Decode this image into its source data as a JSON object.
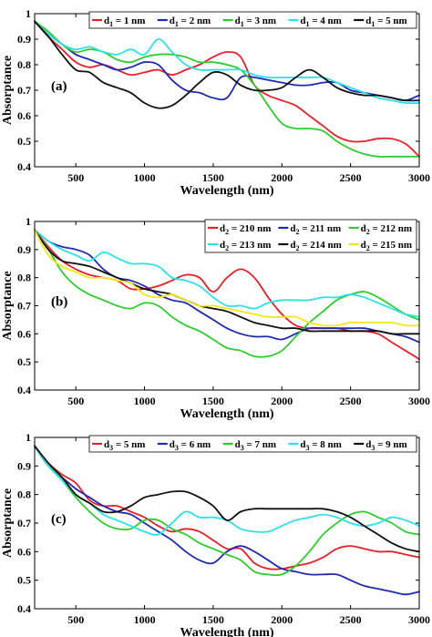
{
  "chart_data": [
    {
      "type": "line",
      "panel_label": "(a)",
      "xlabel": "Wavelength (nm)",
      "ylabel": "Absorptance",
      "xlim": [
        200,
        3000
      ],
      "ylim": [
        0.4,
        1.0
      ],
      "xticks": [
        500,
        1000,
        1500,
        2000,
        2500,
        3000
      ],
      "xtick_labels": [
        "500",
        "1000",
        "1500",
        "2000",
        "2500",
        "3000"
      ],
      "yticks": [
        0.4,
        0.5,
        0.6,
        0.7,
        0.8,
        0.9,
        1.0
      ],
      "ytick_labels": [
        "0.4",
        "0.5",
        "0.6",
        "0.7",
        "0.8",
        "0.9",
        "1"
      ],
      "grid": false,
      "legend_position": "top-right",
      "legend_cols": 5,
      "x": [
        200,
        300,
        400,
        500,
        600,
        700,
        800,
        900,
        1000,
        1100,
        1200,
        1300,
        1400,
        1500,
        1600,
        1700,
        1800,
        1900,
        2000,
        2100,
        2200,
        2300,
        2400,
        2500,
        2600,
        2700,
        2800,
        2900,
        3000
      ],
      "series": [
        {
          "name": "d1 = 1 nm",
          "sym": "d",
          "sub": "1",
          "rest": " = 1 nm",
          "color": "#e8202a",
          "values": [
            0.97,
            0.91,
            0.86,
            0.81,
            0.79,
            0.8,
            0.78,
            0.76,
            0.77,
            0.78,
            0.76,
            0.78,
            0.8,
            0.83,
            0.85,
            0.83,
            0.72,
            0.68,
            0.66,
            0.64,
            0.6,
            0.56,
            0.52,
            0.5,
            0.5,
            0.51,
            0.51,
            0.49,
            0.44
          ]
        },
        {
          "name": "d1 = 2 nm",
          "sym": "d",
          "sub": "1",
          "rest": " = 2 nm",
          "color": "#1f2ab0",
          "values": [
            0.97,
            0.92,
            0.88,
            0.84,
            0.82,
            0.8,
            0.78,
            0.79,
            0.81,
            0.8,
            0.74,
            0.7,
            0.69,
            0.67,
            0.67,
            0.75,
            0.75,
            0.74,
            0.73,
            0.72,
            0.72,
            0.73,
            0.73,
            0.7,
            0.69,
            0.68,
            0.67,
            0.66,
            0.68
          ]
        },
        {
          "name": "d1 = 3 nm",
          "sym": "d",
          "sub": "1",
          "rest": " = 3 nm",
          "color": "#2ecc2e",
          "values": [
            0.97,
            0.93,
            0.88,
            0.85,
            0.86,
            0.85,
            0.82,
            0.81,
            0.83,
            0.84,
            0.84,
            0.83,
            0.81,
            0.81,
            0.8,
            0.78,
            0.72,
            0.64,
            0.57,
            0.55,
            0.55,
            0.54,
            0.5,
            0.47,
            0.45,
            0.44,
            0.44,
            0.44,
            0.44
          ]
        },
        {
          "name": "d1 = 4 nm",
          "sym": "d",
          "sub": "1",
          "rest": " = 4 nm",
          "color": "#2ee0e8",
          "values": [
            0.97,
            0.92,
            0.88,
            0.86,
            0.87,
            0.85,
            0.84,
            0.86,
            0.84,
            0.9,
            0.85,
            0.8,
            0.78,
            0.78,
            0.78,
            0.78,
            0.76,
            0.75,
            0.75,
            0.75,
            0.75,
            0.75,
            0.73,
            0.71,
            0.69,
            0.67,
            0.66,
            0.65,
            0.65
          ]
        },
        {
          "name": "d1 = 5 nm",
          "sym": "d",
          "sub": "1",
          "rest": " = 5 nm",
          "color": "#111111",
          "values": [
            0.97,
            0.91,
            0.84,
            0.78,
            0.77,
            0.73,
            0.71,
            0.69,
            0.65,
            0.63,
            0.64,
            0.68,
            0.73,
            0.77,
            0.76,
            0.72,
            0.7,
            0.7,
            0.71,
            0.75,
            0.78,
            0.75,
            0.71,
            0.69,
            0.68,
            0.68,
            0.67,
            0.66,
            0.66
          ]
        }
      ]
    },
    {
      "type": "line",
      "panel_label": "(b)",
      "xlabel": "Wavelength (nm)",
      "ylabel": "Absorptance",
      "xlim": [
        200,
        3000
      ],
      "ylim": [
        0.4,
        1.0
      ],
      "xticks": [
        500,
        1000,
        1500,
        2000,
        2500,
        3000
      ],
      "xtick_labels": [
        "500",
        "1000",
        "1500",
        "2000",
        "2500",
        "3000"
      ],
      "yticks": [
        0.4,
        0.5,
        0.6,
        0.7,
        0.8,
        0.9,
        1.0
      ],
      "ytick_labels": [
        "0.4",
        "0.5",
        "0.6",
        "0.7",
        "0.8",
        "0.9",
        "1"
      ],
      "grid": false,
      "legend_position": "top-right",
      "legend_cols": 3,
      "x": [
        200,
        300,
        400,
        500,
        600,
        700,
        800,
        900,
        1000,
        1100,
        1200,
        1300,
        1400,
        1500,
        1600,
        1700,
        1800,
        1900,
        2000,
        2100,
        2200,
        2300,
        2400,
        2500,
        2600,
        2700,
        2800,
        2900,
        3000
      ],
      "series": [
        {
          "name": "d2 = 210 nm",
          "sym": "d",
          "sub": "2",
          "rest": " = 210 nm",
          "color": "#e8202a",
          "values": [
            0.97,
            0.91,
            0.86,
            0.83,
            0.81,
            0.8,
            0.79,
            0.76,
            0.76,
            0.77,
            0.79,
            0.81,
            0.8,
            0.75,
            0.8,
            0.83,
            0.8,
            0.73,
            0.67,
            0.63,
            0.62,
            0.62,
            0.62,
            0.61,
            0.61,
            0.6,
            0.57,
            0.54,
            0.51
          ]
        },
        {
          "name": "d2 = 211 nm",
          "sym": "d",
          "sub": "2",
          "rest": " = 211 nm",
          "color": "#1f2ab0",
          "values": [
            0.97,
            0.93,
            0.91,
            0.9,
            0.88,
            0.83,
            0.8,
            0.79,
            0.77,
            0.74,
            0.72,
            0.71,
            0.68,
            0.65,
            0.62,
            0.6,
            0.59,
            0.59,
            0.58,
            0.6,
            0.62,
            0.62,
            0.62,
            0.62,
            0.62,
            0.61,
            0.6,
            0.59,
            0.57
          ]
        },
        {
          "name": "d2 = 212 nm",
          "sym": "d",
          "sub": "2",
          "rest": " = 212 nm",
          "color": "#2ecc2e",
          "values": [
            0.97,
            0.9,
            0.82,
            0.77,
            0.74,
            0.72,
            0.7,
            0.69,
            0.71,
            0.7,
            0.66,
            0.63,
            0.61,
            0.58,
            0.55,
            0.54,
            0.52,
            0.52,
            0.54,
            0.59,
            0.64,
            0.68,
            0.72,
            0.74,
            0.75,
            0.73,
            0.7,
            0.67,
            0.65
          ]
        },
        {
          "name": "d2 = 213 nm",
          "sym": "d",
          "sub": "2",
          "rest": " = 213 nm",
          "color": "#2ee0e8",
          "values": [
            0.97,
            0.93,
            0.9,
            0.88,
            0.86,
            0.89,
            0.87,
            0.85,
            0.85,
            0.84,
            0.8,
            0.79,
            0.77,
            0.73,
            0.7,
            0.7,
            0.69,
            0.71,
            0.72,
            0.72,
            0.72,
            0.73,
            0.73,
            0.74,
            0.73,
            0.71,
            0.69,
            0.67,
            0.66
          ]
        },
        {
          "name": "d2 = 214 nm",
          "sym": "d",
          "sub": "2",
          "rest": " = 214 nm",
          "color": "#111111",
          "values": [
            0.97,
            0.9,
            0.86,
            0.85,
            0.84,
            0.82,
            0.8,
            0.78,
            0.76,
            0.75,
            0.74,
            0.72,
            0.7,
            0.69,
            0.68,
            0.66,
            0.64,
            0.63,
            0.62,
            0.62,
            0.61,
            0.61,
            0.61,
            0.61,
            0.61,
            0.61,
            0.6,
            0.6,
            0.6
          ]
        },
        {
          "name": "d2 = 215 nm",
          "sym": "d",
          "sub": "2",
          "rest": " = 215 nm",
          "color": "#f5e71a",
          "values": [
            0.97,
            0.88,
            0.84,
            0.82,
            0.8,
            0.8,
            0.79,
            0.78,
            0.74,
            0.73,
            0.74,
            0.72,
            0.7,
            0.7,
            0.69,
            0.68,
            0.67,
            0.66,
            0.66,
            0.66,
            0.64,
            0.63,
            0.63,
            0.64,
            0.64,
            0.64,
            0.64,
            0.63,
            0.63
          ]
        }
      ]
    },
    {
      "type": "line",
      "panel_label": "(c)",
      "xlabel": "Wavelength (nm)",
      "ylabel": "Absorptance",
      "xlim": [
        200,
        3000
      ],
      "ylim": [
        0.4,
        1.0
      ],
      "xticks": [
        500,
        1000,
        1500,
        2000,
        2500,
        3000
      ],
      "xtick_labels": [
        "500",
        "1000",
        "1500",
        "2000",
        "2500",
        "3000"
      ],
      "yticks": [
        0.4,
        0.5,
        0.6,
        0.7,
        0.8,
        0.9,
        1.0
      ],
      "ytick_labels": [
        "0.4",
        "0.5",
        "0.6",
        "0.7",
        "0.8",
        "0.9",
        "1"
      ],
      "grid": false,
      "legend_position": "top-right",
      "legend_cols": 5,
      "x": [
        200,
        300,
        400,
        500,
        600,
        700,
        800,
        900,
        1000,
        1100,
        1200,
        1300,
        1400,
        1500,
        1600,
        1700,
        1800,
        1900,
        2000,
        2100,
        2200,
        2300,
        2400,
        2500,
        2600,
        2700,
        2800,
        2900,
        3000
      ],
      "series": [
        {
          "name": "d3 = 5 nm",
          "sym": "d",
          "sub": "3",
          "rest": " = 5 nm",
          "color": "#e8202a",
          "values": [
            0.97,
            0.91,
            0.87,
            0.84,
            0.78,
            0.76,
            0.76,
            0.74,
            0.72,
            0.69,
            0.67,
            0.68,
            0.67,
            0.64,
            0.61,
            0.61,
            0.56,
            0.54,
            0.54,
            0.55,
            0.56,
            0.58,
            0.61,
            0.62,
            0.61,
            0.6,
            0.6,
            0.59,
            0.58
          ]
        },
        {
          "name": "d3 = 6 nm",
          "sym": "d",
          "sub": "3",
          "rest": " = 6 nm",
          "color": "#1f2ab0",
          "values": [
            0.97,
            0.9,
            0.86,
            0.82,
            0.79,
            0.76,
            0.74,
            0.73,
            0.7,
            0.67,
            0.64,
            0.6,
            0.57,
            0.56,
            0.6,
            0.62,
            0.6,
            0.57,
            0.54,
            0.53,
            0.52,
            0.52,
            0.52,
            0.5,
            0.48,
            0.47,
            0.46,
            0.45,
            0.46
          ]
        },
        {
          "name": "d3 = 7 nm",
          "sym": "d",
          "sub": "3",
          "rest": " = 7 nm",
          "color": "#2ecc2e",
          "values": [
            0.97,
            0.91,
            0.85,
            0.79,
            0.74,
            0.7,
            0.68,
            0.68,
            0.71,
            0.71,
            0.68,
            0.66,
            0.63,
            0.61,
            0.59,
            0.57,
            0.53,
            0.52,
            0.52,
            0.55,
            0.6,
            0.66,
            0.7,
            0.73,
            0.74,
            0.72,
            0.7,
            0.67,
            0.66
          ]
        },
        {
          "name": "d3 = 8 nm",
          "sym": "d",
          "sub": "3",
          "rest": " = 8 nm",
          "color": "#2ee0e8",
          "values": [
            0.97,
            0.9,
            0.85,
            0.8,
            0.77,
            0.73,
            0.71,
            0.69,
            0.67,
            0.66,
            0.7,
            0.74,
            0.72,
            0.72,
            0.71,
            0.68,
            0.67,
            0.67,
            0.69,
            0.71,
            0.72,
            0.73,
            0.72,
            0.7,
            0.69,
            0.7,
            0.72,
            0.71,
            0.69
          ]
        },
        {
          "name": "d3 = 9 nm",
          "sym": "d",
          "sub": "3",
          "rest": " = 9 nm",
          "color": "#111111",
          "values": [
            0.97,
            0.91,
            0.86,
            0.8,
            0.77,
            0.74,
            0.74,
            0.76,
            0.79,
            0.8,
            0.81,
            0.81,
            0.79,
            0.76,
            0.71,
            0.74,
            0.75,
            0.75,
            0.75,
            0.75,
            0.75,
            0.75,
            0.74,
            0.72,
            0.69,
            0.66,
            0.63,
            0.61,
            0.6
          ]
        }
      ]
    }
  ]
}
